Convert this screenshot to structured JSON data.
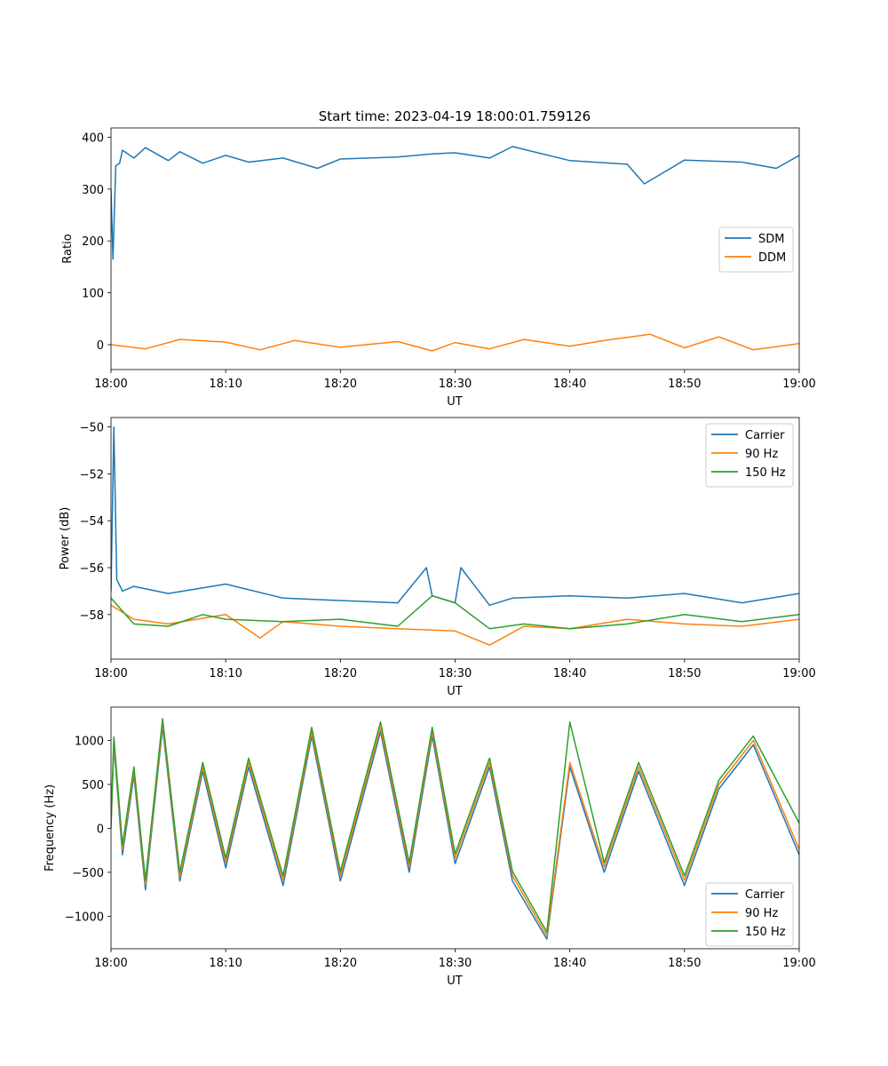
{
  "figure_title": "Start time: 2023-04-19 18:00:01.759126",
  "colors": {
    "blue": "#1f77b4",
    "orange": "#ff7f0e",
    "green": "#2ca02c"
  },
  "chart_data": [
    {
      "type": "line",
      "title": "Start time: 2023-04-19 18:00:01.759126",
      "xlabel": "UT",
      "ylabel": "Ratio",
      "xlim": [
        "18:00",
        "19:00"
      ],
      "xticks": [
        "18:00",
        "18:10",
        "18:20",
        "18:30",
        "18:40",
        "18:50",
        "19:00"
      ],
      "ylim": [
        -48,
        418
      ],
      "yticks": [
        400,
        300,
        200,
        100,
        0
      ],
      "legend": "center-right",
      "series": [
        {
          "name": "SDM",
          "color": "#1f77b4",
          "x": [
            "18:00",
            "18:00:10",
            "18:00:25",
            "18:00:45",
            "18:01",
            "18:02",
            "18:03",
            "18:05",
            "18:06",
            "18:08",
            "18:10",
            "18:12",
            "18:15",
            "18:18",
            "18:20",
            "18:25",
            "18:28",
            "18:30",
            "18:33",
            "18:35",
            "18:40",
            "18:45",
            "18:46:30",
            "18:50",
            "18:55",
            "18:58",
            "19:00"
          ],
          "values": [
            300,
            165,
            345,
            350,
            375,
            360,
            380,
            355,
            372,
            350,
            365,
            352,
            360,
            340,
            358,
            362,
            368,
            370,
            360,
            382,
            355,
            348,
            310,
            356,
            352,
            340,
            365
          ]
        },
        {
          "name": "DDM",
          "color": "#ff7f0e",
          "x": [
            "18:00",
            "18:03",
            "18:06",
            "18:10",
            "18:13",
            "18:16",
            "18:20",
            "18:25",
            "18:28",
            "18:30",
            "18:33",
            "18:36",
            "18:40",
            "18:43",
            "18:47",
            "18:50",
            "18:53",
            "18:56",
            "19:00"
          ],
          "values": [
            0,
            -8,
            10,
            5,
            -10,
            8,
            -5,
            6,
            -12,
            4,
            -8,
            10,
            -3,
            8,
            20,
            -6,
            15,
            -10,
            2
          ]
        }
      ]
    },
    {
      "type": "line",
      "xlabel": "UT",
      "ylabel": "Power (dB)",
      "xlim": [
        "18:00",
        "19:00"
      ],
      "xticks": [
        "18:00",
        "18:10",
        "18:20",
        "18:30",
        "18:40",
        "18:50",
        "19:00"
      ],
      "ylim": [
        -59.9,
        -49.6
      ],
      "yticks": [
        -50,
        -52,
        -54,
        -56,
        -58
      ],
      "legend": "upper-right",
      "series": [
        {
          "name": "Carrier",
          "color": "#1f77b4",
          "x": [
            "18:00",
            "18:00:15",
            "18:00:30",
            "18:01",
            "18:02",
            "18:05",
            "18:10",
            "18:15",
            "18:20",
            "18:25",
            "18:27:30",
            "18:28",
            "18:30",
            "18:30:30",
            "18:33",
            "18:35",
            "18:40",
            "18:45",
            "18:50",
            "18:55",
            "19:00"
          ],
          "values": [
            -57,
            -50,
            -56.5,
            -57,
            -56.8,
            -57.1,
            -56.7,
            -57.3,
            -57.4,
            -57.5,
            -56,
            -57.2,
            -57.5,
            -56,
            -57.6,
            -57.3,
            -57.2,
            -57.3,
            -57.1,
            -57.5,
            -57.1
          ]
        },
        {
          "name": "90 Hz",
          "color": "#ff7f0e",
          "x": [
            "18:00",
            "18:02",
            "18:05",
            "18:10",
            "18:13",
            "18:15",
            "18:20",
            "18:25",
            "18:30",
            "18:33",
            "18:36",
            "18:40",
            "18:45",
            "18:50",
            "18:55",
            "19:00"
          ],
          "values": [
            -57.6,
            -58.2,
            -58.4,
            -58,
            -59,
            -58.3,
            -58.5,
            -58.6,
            -58.7,
            -59.3,
            -58.5,
            -58.6,
            -58.2,
            -58.4,
            -58.5,
            -58.2
          ]
        },
        {
          "name": "150 Hz",
          "color": "#2ca02c",
          "x": [
            "18:00",
            "18:02",
            "18:05",
            "18:08",
            "18:10",
            "18:15",
            "18:20",
            "18:25",
            "18:28",
            "18:30",
            "18:33",
            "18:36",
            "18:40",
            "18:45",
            "18:50",
            "18:55",
            "19:00"
          ],
          "values": [
            -57.3,
            -58.4,
            -58.5,
            -58,
            -58.2,
            -58.3,
            -58.2,
            -58.5,
            -57.2,
            -57.5,
            -58.6,
            -58.4,
            -58.6,
            -58.4,
            -58,
            -58.3,
            -58
          ]
        }
      ]
    },
    {
      "type": "line",
      "xlabel": "UT",
      "ylabel": "Frequency (Hz)",
      "xlim": [
        "18:00",
        "19:00"
      ],
      "xticks": [
        "18:00",
        "18:10",
        "18:20",
        "18:30",
        "18:40",
        "18:50",
        "19:00"
      ],
      "ylim": [
        -1370,
        1380
      ],
      "yticks": [
        1000,
        500,
        0,
        -500,
        -1000
      ],
      "legend": "lower-right",
      "series": [
        {
          "name": "Carrier",
          "color": "#1f77b4",
          "x": [
            "18:00",
            "18:00:15",
            "18:01",
            "18:02",
            "18:03",
            "18:04:30",
            "18:06",
            "18:08",
            "18:10",
            "18:12",
            "18:15",
            "18:17:30",
            "18:20",
            "18:23:30",
            "18:26",
            "18:28",
            "18:30",
            "18:33",
            "18:35",
            "18:38",
            "18:40",
            "18:43",
            "18:46",
            "18:50",
            "18:53",
            "18:56",
            "19:00"
          ],
          "values": [
            0,
            950,
            -300,
            600,
            -700,
            1150,
            -600,
            650,
            -450,
            700,
            -650,
            1050,
            -600,
            1100,
            -500,
            1050,
            -400,
            700,
            -600,
            -1260,
            700,
            -500,
            650,
            -650,
            450,
            950,
            -300
          ]
        },
        {
          "name": "90 Hz",
          "color": "#ff7f0e",
          "x": [
            "18:00",
            "18:00:15",
            "18:01",
            "18:02",
            "18:03",
            "18:04:30",
            "18:06",
            "18:08",
            "18:10",
            "18:12",
            "18:15",
            "18:17:30",
            "18:20",
            "18:23:30",
            "18:26",
            "18:28",
            "18:30",
            "18:33",
            "18:35",
            "18:38",
            "18:40",
            "18:43",
            "18:46",
            "18:50",
            "18:53",
            "18:56",
            "19:00"
          ],
          "values": [
            30,
            990,
            -240,
            650,
            -640,
            1200,
            -550,
            700,
            -390,
            750,
            -590,
            1100,
            -540,
            1150,
            -440,
            1100,
            -340,
            750,
            -540,
            -1220,
            750,
            -440,
            700,
            -590,
            500,
            1000,
            -240
          ]
        },
        {
          "name": "150 Hz",
          "color": "#2ca02c",
          "x": [
            "18:00",
            "18:00:15",
            "18:01",
            "18:02",
            "18:03",
            "18:04:30",
            "18:06",
            "18:08",
            "18:10",
            "18:12",
            "18:15",
            "18:17:30",
            "18:20",
            "18:23:30",
            "18:26",
            "18:28",
            "18:30",
            "18:33",
            "18:35",
            "18:38",
            "18:40",
            "18:43",
            "18:46",
            "18:50",
            "18:53",
            "18:56",
            "19:00"
          ],
          "values": [
            60,
            1040,
            -190,
            700,
            -590,
            1250,
            -500,
            750,
            -340,
            800,
            -540,
            1150,
            -490,
            1210,
            -390,
            1150,
            -290,
            800,
            -490,
            -1180,
            1210,
            -390,
            750,
            -540,
            550,
            1050,
            60
          ]
        }
      ]
    }
  ]
}
